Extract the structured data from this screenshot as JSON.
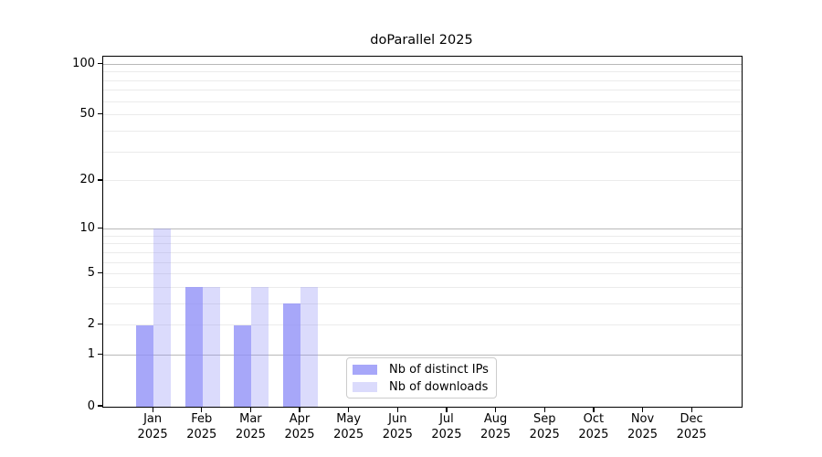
{
  "figure": {
    "background": "#ffffff",
    "accent_dark": "rgba(142,142,247,0.78)",
    "accent_light": "rgba(142,142,247,0.32)"
  },
  "legend": {
    "items": [
      {
        "label": "Nb of distinct IPs",
        "color": "rgba(142,142,247,0.78)"
      },
      {
        "label": "Nb of downloads",
        "color": "rgba(142,142,247,0.32)"
      }
    ]
  },
  "chart_data": {
    "type": "bar",
    "title": "doParallel 2025",
    "categories": [
      "Jan 2025",
      "Feb 2025",
      "Mar 2025",
      "Apr 2025",
      "May 2025",
      "Jun 2025",
      "Jul 2025",
      "Aug 2025",
      "Sep 2025",
      "Oct 2025",
      "Nov 2025",
      "Dec 2025"
    ],
    "series": [
      {
        "name": "Nb of distinct IPs",
        "color": "rgba(142,142,247,0.78)",
        "values": [
          2,
          4,
          2,
          3,
          0,
          0,
          0,
          0,
          0,
          0,
          0,
          0
        ]
      },
      {
        "name": "Nb of downloads",
        "color": "rgba(142,142,247,0.32)",
        "values": [
          10,
          4,
          4,
          4,
          0,
          0,
          0,
          0,
          0,
          0,
          0,
          0
        ]
      }
    ],
    "xlabel": "",
    "ylabel": "",
    "y_scale": "log1p",
    "y_tick_values": [
      0,
      1,
      2,
      5,
      10,
      20,
      50,
      100
    ],
    "y_tick_labels": [
      "0",
      "1",
      "2",
      "5",
      "10",
      "20",
      "50",
      "100"
    ],
    "minor_grid_values": [
      2,
      3,
      4,
      5,
      6,
      7,
      8,
      9,
      20,
      30,
      40,
      50,
      60,
      70,
      80,
      90
    ],
    "decade_grid_values": [
      1,
      10,
      100
    ],
    "ylim": [
      0,
      111
    ],
    "grid": "horizontal",
    "legend_position": "lower center-left inside plot"
  }
}
